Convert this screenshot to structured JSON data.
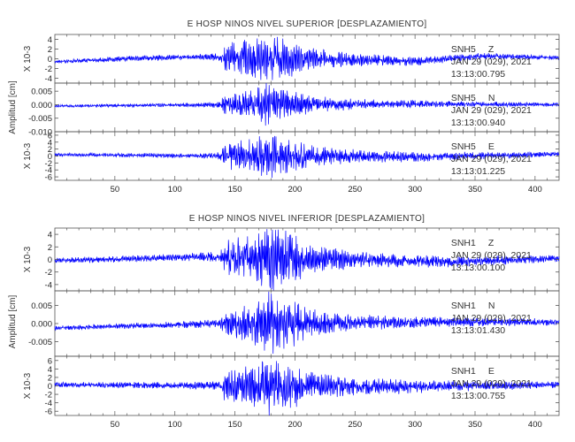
{
  "chart_data": [
    {
      "type": "line",
      "title": "E HOSP NINOS NIVEL SUPERIOR [DESPLAZAMIENTO]",
      "xlim": [
        0,
        420
      ],
      "xticks": [
        50,
        100,
        150,
        200,
        250,
        300,
        350,
        400
      ],
      "xtick_labels": [
        "50",
        "100",
        "150",
        "200",
        "250",
        "300",
        "350",
        "400"
      ],
      "ylabel": "Amplitud [cm]",
      "color": "#0000ff",
      "panels": [
        {
          "station": "SNH5",
          "component": "Z",
          "date": "JAN 29 (029), 2021",
          "time": "13:13:00.795",
          "scale_label": "X 10-3",
          "ylim": [
            -5,
            5
          ],
          "yticks": [
            "4",
            "2",
            "0",
            "-2",
            "-4"
          ],
          "ytick_values": [
            4,
            2,
            0,
            -2,
            -4
          ],
          "envelope": [
            [
              0,
              0.3
            ],
            [
              60,
              0.5
            ],
            [
              120,
              0.5
            ],
            [
              138,
              0.8
            ],
            [
              140,
              2.6
            ],
            [
              160,
              3.4
            ],
            [
              175,
              4.6
            ],
            [
              190,
              3.8
            ],
            [
              210,
              2.3
            ],
            [
              240,
              1.4
            ],
            [
              280,
              0.9
            ],
            [
              320,
              0.7
            ],
            [
              360,
              0.6
            ],
            [
              420,
              0.4
            ]
          ],
          "trend": [
            [
              0,
              -0.6
            ],
            [
              60,
              0
            ],
            [
              120,
              0.4
            ],
            [
              200,
              0
            ],
            [
              300,
              -0.5
            ],
            [
              360,
              0.6
            ],
            [
              420,
              0.2
            ]
          ]
        },
        {
          "station": "SNH5",
          "component": "N",
          "date": "JAN 29 (029), 2021",
          "time": "13:13:00.940",
          "scale_label": "",
          "ylim": [
            -0.01,
            0.008
          ],
          "yticks": [
            "0.005",
            "0.000",
            "-0.005",
            "-0.010"
          ],
          "ytick_values": [
            0.005,
            0,
            -0.005,
            -0.01
          ],
          "envelope": [
            [
              0,
              0.0004
            ],
            [
              100,
              0.0006
            ],
            [
              138,
              0.001
            ],
            [
              140,
              0.003
            ],
            [
              165,
              0.005
            ],
            [
              175,
              0.0075
            ],
            [
              190,
              0.005
            ],
            [
              220,
              0.0025
            ],
            [
              260,
              0.0015
            ],
            [
              320,
              0.001
            ],
            [
              420,
              0.0006
            ]
          ],
          "trend": [
            [
              0,
              -0.0005
            ],
            [
              140,
              0
            ],
            [
              300,
              0.0003
            ],
            [
              420,
              0
            ]
          ]
        },
        {
          "station": "SNH5",
          "component": "E",
          "date": "JAN 29 (029), 2021",
          "time": "13:13:01.225",
          "scale_label": "X 10-3",
          "ylim": [
            -7,
            7
          ],
          "yticks": [
            "6",
            "4",
            "2",
            "0",
            "-2",
            "-4",
            "-6"
          ],
          "ytick_values": [
            6,
            4,
            2,
            0,
            -2,
            -4,
            -6
          ],
          "envelope": [
            [
              0,
              0.4
            ],
            [
              100,
              0.6
            ],
            [
              138,
              0.9
            ],
            [
              140,
              3
            ],
            [
              165,
              4.5
            ],
            [
              175,
              6.2
            ],
            [
              190,
              4.5
            ],
            [
              220,
              2.5
            ],
            [
              260,
              1.6
            ],
            [
              320,
              1.1
            ],
            [
              420,
              0.6
            ]
          ],
          "trend": [
            [
              0,
              0.4
            ],
            [
              150,
              0
            ],
            [
              300,
              -0.3
            ],
            [
              420,
              0.6
            ]
          ]
        }
      ]
    },
    {
      "type": "line",
      "title": "E HOSP NINOS NIVEL INFERIOR [DESPLAZAMIENTO]",
      "xlim": [
        0,
        420
      ],
      "xticks": [
        50,
        100,
        150,
        200,
        250,
        300,
        350,
        400
      ],
      "xtick_labels": [
        "50",
        "100",
        "150",
        "200",
        "250",
        "300",
        "350",
        "400"
      ],
      "ylabel": "Amplitud [cm]",
      "color": "#0000ff",
      "panels": [
        {
          "station": "SNH1",
          "component": "Z",
          "date": "JAN 29 (029), 2021",
          "time": "13:13:00.100",
          "scale_label": "X 10-3",
          "ylim": [
            -5,
            5
          ],
          "yticks": [
            "4",
            "2",
            "0",
            "-2",
            "-4"
          ],
          "ytick_values": [
            4,
            2,
            0,
            -2,
            -4
          ],
          "envelope": [
            [
              0,
              0.4
            ],
            [
              100,
              0.5
            ],
            [
              138,
              0.8
            ],
            [
              140,
              2.2
            ],
            [
              165,
              3.2
            ],
            [
              180,
              4.8
            ],
            [
              195,
              3.6
            ],
            [
              220,
              1.8
            ],
            [
              260,
              1.1
            ],
            [
              320,
              0.8
            ],
            [
              420,
              0.5
            ]
          ],
          "trend": [
            [
              0,
              -0.2
            ],
            [
              120,
              0.4
            ],
            [
              250,
              0
            ],
            [
              330,
              -0.4
            ],
            [
              420,
              0.2
            ]
          ]
        },
        {
          "station": "SNH1",
          "component": "N",
          "date": "JAN 29 (029), 2021",
          "time": "13:13:01.430",
          "scale_label": "",
          "ylim": [
            -0.009,
            0.009
          ],
          "yticks": [
            "0.005",
            "0.000",
            "-0.005"
          ],
          "ytick_values": [
            0.005,
            0,
            -0.005
          ],
          "envelope": [
            [
              0,
              0.0005
            ],
            [
              100,
              0.0008
            ],
            [
              138,
              0.0012
            ],
            [
              140,
              0.003
            ],
            [
              165,
              0.005
            ],
            [
              178,
              0.008
            ],
            [
              195,
              0.006
            ],
            [
              220,
              0.003
            ],
            [
              260,
              0.0018
            ],
            [
              320,
              0.0012
            ],
            [
              420,
              0.0008
            ]
          ],
          "trend": [
            [
              0,
              -0.0012
            ],
            [
              140,
              0
            ],
            [
              300,
              0.0004
            ],
            [
              420,
              0.0004
            ]
          ]
        },
        {
          "station": "SNH1",
          "component": "E",
          "date": "JAN 29 (029), 2021",
          "time": "13:13:00.755",
          "scale_label": "X 10-3",
          "ylim": [
            -7,
            7
          ],
          "yticks": [
            "6",
            "4",
            "2",
            "0",
            "-2",
            "-4",
            "-6"
          ],
          "ytick_values": [
            6,
            4,
            2,
            0,
            -2,
            -4,
            -6
          ],
          "envelope": [
            [
              0,
              0.5
            ],
            [
              100,
              0.7
            ],
            [
              138,
              1
            ],
            [
              140,
              3
            ],
            [
              165,
              4.5
            ],
            [
              178,
              6.5
            ],
            [
              195,
              4.8
            ],
            [
              220,
              2.6
            ],
            [
              260,
              1.7
            ],
            [
              320,
              1.2
            ],
            [
              420,
              0.7
            ]
          ],
          "trend": [
            [
              0,
              0.3
            ],
            [
              150,
              0
            ],
            [
              300,
              -0.2
            ],
            [
              420,
              0.3
            ]
          ]
        }
      ]
    }
  ]
}
